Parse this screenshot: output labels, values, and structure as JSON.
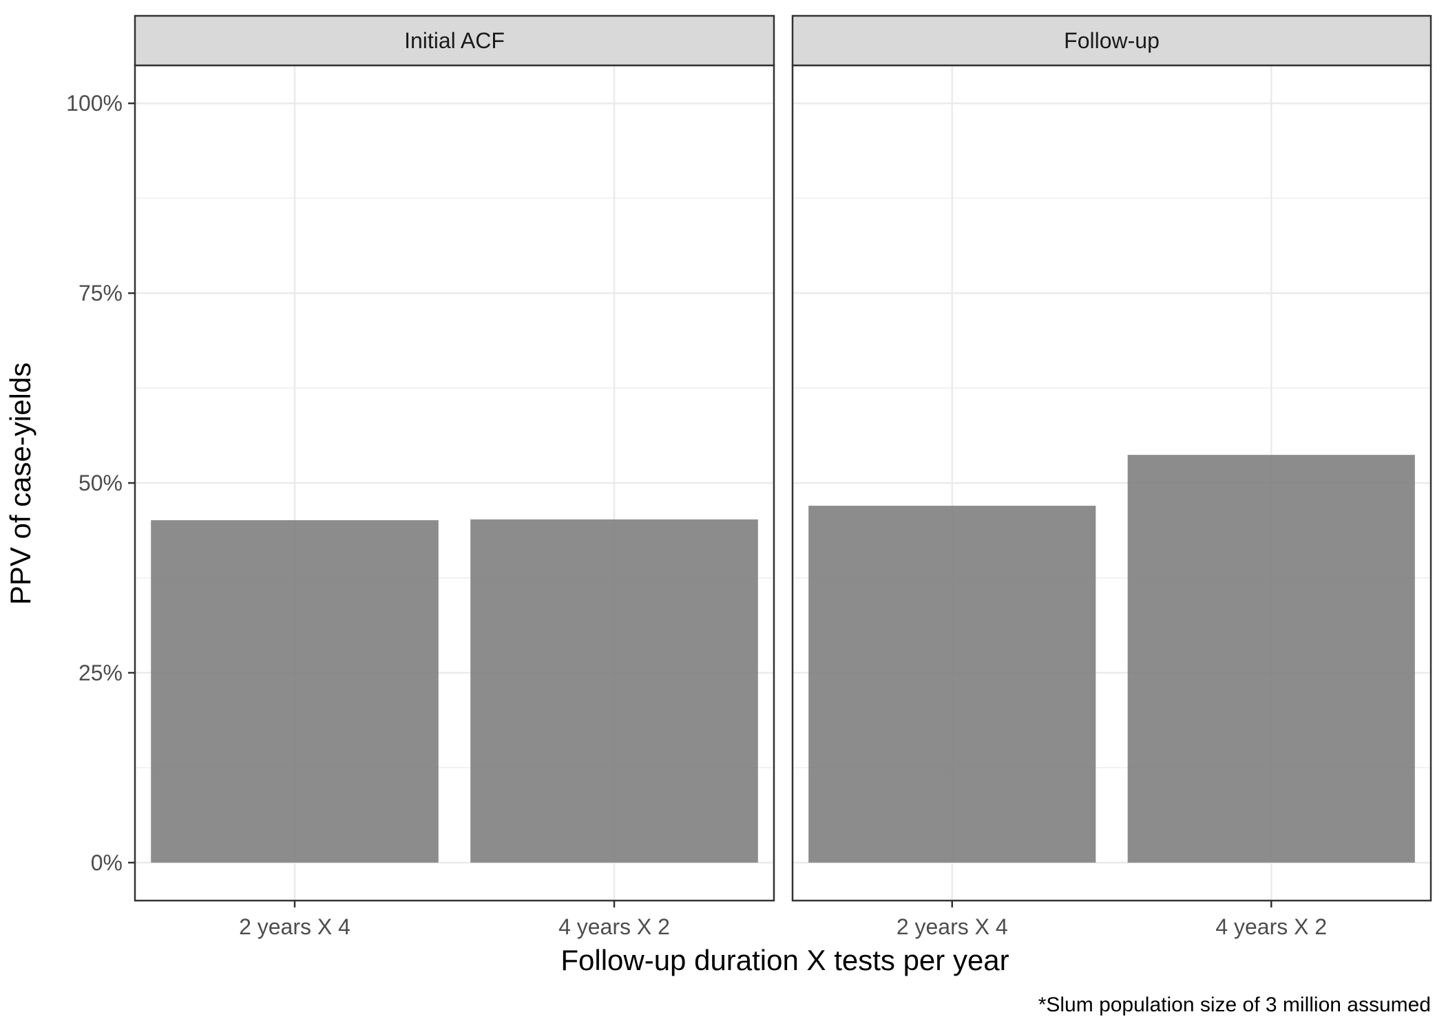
{
  "chart_data": {
    "type": "bar",
    "facets": [
      {
        "label": "Initial ACF",
        "categories": [
          "2 years X 4",
          "4 years X 2"
        ],
        "values": [
          45.1,
          45.2
        ]
      },
      {
        "label": "Follow-up",
        "categories": [
          "2 years X 4",
          "4 years X 2"
        ],
        "values": [
          47.0,
          53.7
        ]
      }
    ],
    "xlabel": "Follow-up duration X tests per year",
    "ylabel": "PPV of case-yields",
    "ylim": [
      -5,
      105
    ],
    "yticks": [
      0,
      25,
      50,
      75,
      100
    ],
    "ytick_labels": [
      "0%",
      "25%",
      "50%",
      "75%",
      "100%"
    ],
    "caption": "*Slum population size of 3 million assumed",
    "grid": true,
    "bar_color": "#808080",
    "strip_color": "#d9d9d9",
    "grid_color": "#ebebeb"
  }
}
